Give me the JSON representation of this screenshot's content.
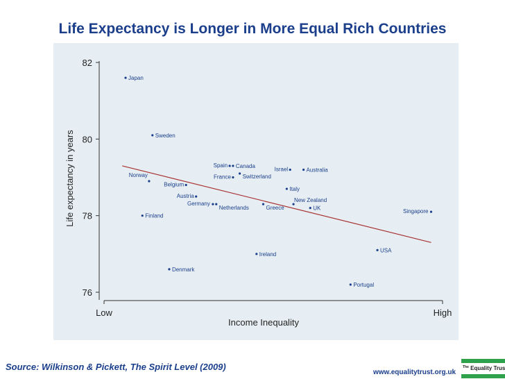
{
  "title": "Life Expectancy is Longer in More Equal Rich Countries",
  "source": "Source: Wilkinson & Pickett, The Spirit Level (2009)",
  "url": "www.equalitytrust.org.uk",
  "logo": {
    "prefix": "The",
    "name": "Equality Trust"
  },
  "colors": {
    "title": "#1b3f8b",
    "trend": "#a83232",
    "points": "#1b3f8b",
    "plot_bg": "#e6eef3",
    "logo": "#2ea24a"
  },
  "chart_data": {
    "type": "scatter",
    "title": "Life Expectancy is Longer in More Equal Rich Countries",
    "xlabel": "Income Inequality",
    "ylabel": "Life expectancy in years",
    "x_ticks": [
      "Low",
      "High"
    ],
    "y_ticks": [
      76,
      78,
      80,
      82
    ],
    "ylim": [
      75.8,
      82.3
    ],
    "x_range": [
      0,
      100
    ],
    "points": [
      {
        "name": "Japan",
        "x": 6,
        "y": 81.6
      },
      {
        "name": "Sweden",
        "x": 14,
        "y": 80.1
      },
      {
        "name": "Norway",
        "x": 13,
        "y": 78.9
      },
      {
        "name": "Belgium",
        "x": 24,
        "y": 78.8
      },
      {
        "name": "Austria",
        "x": 27,
        "y": 78.5
      },
      {
        "name": "Finland",
        "x": 11,
        "y": 78.0
      },
      {
        "name": "Denmark",
        "x": 19,
        "y": 76.6
      },
      {
        "name": "Spain",
        "x": 37,
        "y": 79.3
      },
      {
        "name": "Canada",
        "x": 38,
        "y": 79.3
      },
      {
        "name": "France",
        "x": 38,
        "y": 79.0
      },
      {
        "name": "Switzerland",
        "x": 40,
        "y": 79.1
      },
      {
        "name": "Germany",
        "x": 32,
        "y": 78.3
      },
      {
        "name": "Netherlands",
        "x": 33,
        "y": 78.3
      },
      {
        "name": "Greece",
        "x": 47,
        "y": 78.3
      },
      {
        "name": "Israel",
        "x": 55,
        "y": 79.2
      },
      {
        "name": "Australia",
        "x": 59,
        "y": 79.2
      },
      {
        "name": "Italy",
        "x": 54,
        "y": 78.7
      },
      {
        "name": "New Zealand",
        "x": 56,
        "y": 78.3
      },
      {
        "name": "UK",
        "x": 61,
        "y": 78.2
      },
      {
        "name": "Ireland",
        "x": 45,
        "y": 77.0
      },
      {
        "name": "USA",
        "x": 81,
        "y": 77.1
      },
      {
        "name": "Portugal",
        "x": 73,
        "y": 76.2
      },
      {
        "name": "Singapore",
        "x": 97,
        "y": 78.1
      }
    ],
    "trend_line": {
      "x": [
        5,
        97
      ],
      "y": [
        79.3,
        77.3
      ]
    },
    "grid": false
  }
}
